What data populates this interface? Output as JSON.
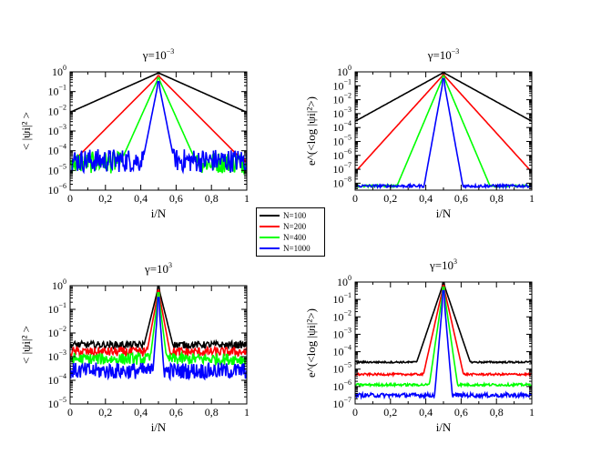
{
  "chart_data": [
    {
      "type": "line",
      "title_base": "γ=10",
      "title_exp": "−3",
      "ylabel": "< |ψi|² >",
      "xlabel": "i/N",
      "xlim": [
        0,
        1
      ],
      "ylim_log10": [
        -6,
        0
      ],
      "x_ticks": [
        "0",
        "0,2",
        "0,4",
        "0,6",
        "0,8",
        "1"
      ],
      "y_ticks": [
        "10^-6",
        "10^-5",
        "10^-4",
        "10^-3",
        "10^-2",
        "10^-1",
        "10^0"
      ],
      "peak_x": 0.5,
      "series": [
        {
          "name": "N=100",
          "peak": -0.05,
          "baseline": -5.0,
          "decay": 4.0,
          "noise": 0.5
        },
        {
          "name": "N=200",
          "peak": -0.2,
          "baseline": -4.8,
          "decay": 9.0,
          "noise": 0.5
        },
        {
          "name": "N=400",
          "peak": -0.3,
          "baseline": -4.6,
          "decay": 20.0,
          "noise": 0.55
        },
        {
          "name": "N=1000",
          "peak": -0.5,
          "baseline": -4.5,
          "decay": 45.0,
          "noise": 0.6
        }
      ]
    },
    {
      "type": "line",
      "title_base": "γ=10",
      "title_exp": "−3",
      "ylabel": "e^(<log |ψi|²>)",
      "xlabel": "i/N",
      "xlim": [
        0,
        1
      ],
      "ylim_log10": [
        -8.5,
        0
      ],
      "x_ticks": [
        "0",
        "0,2",
        "0,4",
        "0,6",
        "0,8",
        "1"
      ],
      "y_ticks": [
        "10^-8",
        "10^-7",
        "10^-6",
        "10^-5",
        "10^-4",
        "10^-3",
        "10^-2",
        "10^-1",
        "10^0"
      ],
      "peak_x": 0.5,
      "series": [
        {
          "name": "N=100",
          "peak": -0.05,
          "baseline": -8.1,
          "decay": 7.0,
          "noise": 0.08
        },
        {
          "name": "N=200",
          "peak": -0.2,
          "baseline": -8.15,
          "decay": 14.0,
          "noise": 0.08
        },
        {
          "name": "N=400",
          "peak": -0.3,
          "baseline": -8.2,
          "decay": 30.0,
          "noise": 0.08
        },
        {
          "name": "N=1000",
          "peak": -0.5,
          "baseline": -8.2,
          "decay": 70.0,
          "noise": 0.1
        }
      ]
    },
    {
      "type": "line",
      "title_base": "γ=10",
      "title_exp": "3",
      "ylabel": "< |ψi|² >",
      "xlabel": "i/N",
      "xlim": [
        0,
        1
      ],
      "ylim_log10": [
        -5,
        0
      ],
      "x_ticks": [
        "0",
        "0,2",
        "0,4",
        "0,6",
        "0,8",
        "1"
      ],
      "y_ticks": [
        "10^-5",
        "10^-4",
        "10^-3",
        "10^-2",
        "10^-1",
        "10^0"
      ],
      "peak_x": 0.5,
      "series": [
        {
          "name": "N=100",
          "peak": -0.05,
          "baseline": -2.5,
          "decay": 30.0,
          "noise": 0.15
        },
        {
          "name": "N=200",
          "peak": -0.2,
          "baseline": -2.8,
          "decay": 40.0,
          "noise": 0.2
        },
        {
          "name": "N=400",
          "peak": -0.3,
          "baseline": -3.1,
          "decay": 60.0,
          "noise": 0.25
        },
        {
          "name": "N=1000",
          "peak": -0.5,
          "baseline": -3.6,
          "decay": 100.0,
          "noise": 0.35
        }
      ]
    },
    {
      "type": "line",
      "title_base": "γ=10",
      "title_exp": "3",
      "ylabel": "e^(<log |ψi|²>)",
      "xlabel": "i/N",
      "xlim": [
        0,
        1
      ],
      "ylim_log10": [
        -7,
        0
      ],
      "x_ticks": [
        "0",
        "0,2",
        "0,4",
        "0,6",
        "0,8",
        "1"
      ],
      "y_ticks": [
        "10^-7",
        "10^-6",
        "10^-5",
        "10^-4",
        "10^-3",
        "10^-2",
        "10^-1",
        "10^0"
      ],
      "peak_x": 0.5,
      "series": [
        {
          "name": "N=100",
          "peak": -0.05,
          "baseline": -4.6,
          "decay": 30.0,
          "noise": 0.05
        },
        {
          "name": "N=200",
          "peak": -0.2,
          "baseline": -5.3,
          "decay": 45.0,
          "noise": 0.06
        },
        {
          "name": "N=400",
          "peak": -0.3,
          "baseline": -5.9,
          "decay": 70.0,
          "noise": 0.07
        },
        {
          "name": "N=1000",
          "peak": -0.5,
          "baseline": -6.5,
          "decay": 120.0,
          "noise": 0.12
        }
      ]
    }
  ],
  "legend": {
    "items": [
      {
        "label": "N=100",
        "color": "#000000"
      },
      {
        "label": "N=200",
        "color": "#ff0000"
      },
      {
        "label": "N=400",
        "color": "#00ff00"
      },
      {
        "label": "N=1000",
        "color": "#0000ff"
      }
    ]
  }
}
